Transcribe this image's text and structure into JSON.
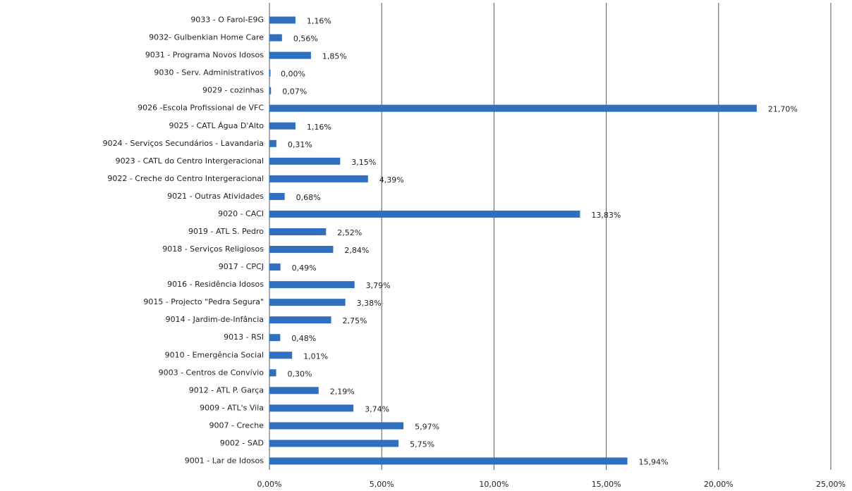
{
  "chart_data": {
    "type": "bar",
    "orientation": "horizontal",
    "color": "#2e6fc0",
    "grid": true,
    "categories": [
      "9033 - O Farol-E9G",
      "9032- Gulbenkian Home Care",
      "9031 - Programa Novos Idosos",
      "9030 - Serv. Administrativos",
      "9029 - cozinhas",
      "9026 -Escola Profissional de VFC",
      "9025 - CATL Água D'Alto",
      "9024 - Serviços Secundários - Lavandaria",
      "9023 - CATL do Centro Intergeracional",
      "9022 - Creche do Centro Intergeracional",
      "9021 - Outras Atividades",
      "9020 - CACI",
      "9019 - ATL S. Pedro",
      "9018 - Serviços Religiosos",
      "9017 - CPCJ",
      "9016 - Residência Idosos",
      "9015 - Projecto \"Pedra Segura\"",
      "9014 - Jardim-de-Infância",
      "9013 - RSI",
      "9010 - Emergência Social",
      "9003 - Centros de Convívio",
      "9012 - ATL P. Garça",
      "9009 - ATL's Vila",
      "9007 - Creche",
      "9002 - SAD",
      "9001 - Lar de Idosos"
    ],
    "values": [
      1.16,
      0.56,
      1.85,
      0.0,
      0.07,
      21.7,
      1.16,
      0.31,
      3.15,
      4.39,
      0.68,
      13.83,
      2.52,
      2.84,
      0.49,
      3.79,
      3.38,
      2.75,
      0.48,
      1.01,
      0.3,
      2.19,
      3.74,
      5.97,
      5.75,
      15.94
    ],
    "value_labels": [
      "1,16%",
      "0,56%",
      "1,85%",
      "0,00%",
      "0,07%",
      "21,70%",
      "1,16%",
      "0,31%",
      "3,15%",
      "4,39%",
      "0,68%",
      "13,83%",
      "2,52%",
      "2,84%",
      "0,49%",
      "3,79%",
      "3,38%",
      "2,75%",
      "0,48%",
      "1,01%",
      "0,30%",
      "2,19%",
      "3,74%",
      "5,97%",
      "5,75%",
      "15,94%"
    ],
    "xlim": [
      0,
      25
    ],
    "xticks": [
      {
        "value": 0,
        "label": "0,00%"
      },
      {
        "value": 5,
        "label": "5,00%"
      },
      {
        "value": 10,
        "label": "10,00%"
      },
      {
        "value": 15,
        "label": "15,00%"
      },
      {
        "value": 20,
        "label": "20,00%"
      },
      {
        "value": 25,
        "label": "25,00%"
      }
    ]
  }
}
